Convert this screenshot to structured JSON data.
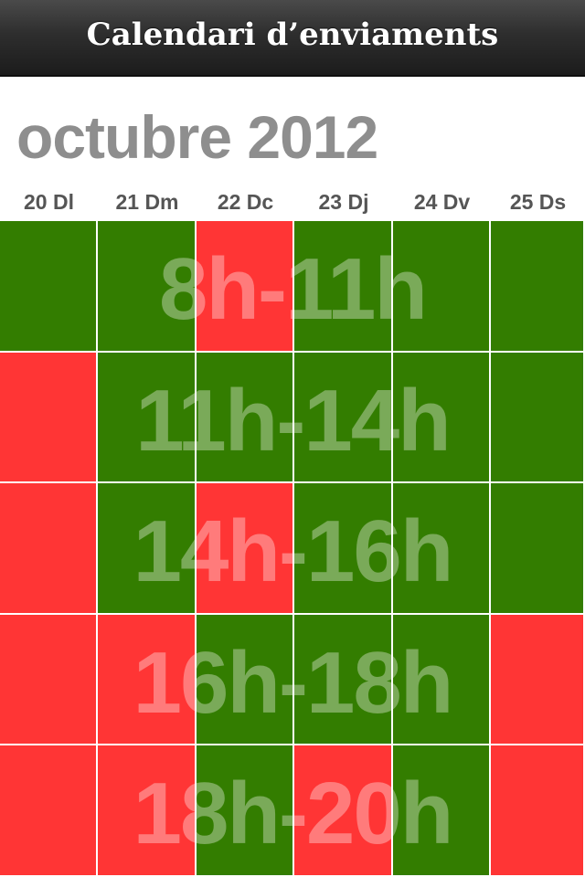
{
  "navbar": {
    "title": "Calendari d’enviaments"
  },
  "calendar": {
    "month_title": "octubre 2012",
    "days": [
      "20 Dl",
      "21 Dm",
      "22 Dc",
      "23 Dj",
      "24 Dv",
      "25 Ds"
    ],
    "colors": {
      "available": "#337d00",
      "unavailable": "#ff3535"
    },
    "slots": [
      {
        "label": "8h-11h",
        "status": [
          "available",
          "available",
          "unavailable",
          "available",
          "available",
          "available"
        ]
      },
      {
        "label": "11h-14h",
        "status": [
          "unavailable",
          "available",
          "available",
          "available",
          "available",
          "available"
        ]
      },
      {
        "label": "14h-16h",
        "status": [
          "unavailable",
          "available",
          "unavailable",
          "available",
          "available",
          "available"
        ]
      },
      {
        "label": "16h-18h",
        "status": [
          "unavailable",
          "unavailable",
          "available",
          "available",
          "available",
          "unavailable"
        ]
      },
      {
        "label": "18h-20h",
        "status": [
          "unavailable",
          "unavailable",
          "available",
          "unavailable",
          "available",
          "unavailable"
        ]
      }
    ]
  }
}
